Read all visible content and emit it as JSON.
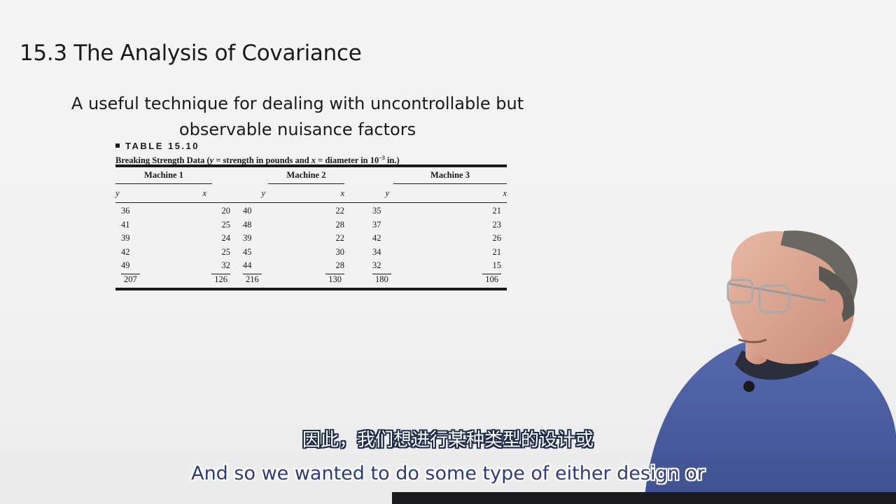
{
  "slide": {
    "title": "15.3 The Analysis of Covariance",
    "subtitle_line1": "A useful technique for dealing with uncontrollable but",
    "subtitle_line2": "observable nuisance factors"
  },
  "table": {
    "label": "TABLE 15.10",
    "caption_prefix": "Breaking Strength Data (",
    "caption_y": "y",
    "caption_mid1": " = strength in pounds and ",
    "caption_x": "x",
    "caption_mid2": " = diameter in 10",
    "caption_exp": "−3",
    "caption_suffix": " in.)",
    "groups": [
      "Machine 1",
      "Machine 2",
      "Machine 3"
    ],
    "vars": [
      "y",
      "x",
      "y",
      "x",
      "y",
      "x"
    ],
    "rows": [
      [
        "36",
        "20",
        "40",
        "22",
        "35",
        "21"
      ],
      [
        "41",
        "25",
        "48",
        "28",
        "37",
        "23"
      ],
      [
        "39",
        "24",
        "39",
        "22",
        "42",
        "26"
      ],
      [
        "42",
        "25",
        "45",
        "30",
        "34",
        "21"
      ],
      [
        "49",
        "32",
        "44",
        "28",
        "32",
        "15"
      ]
    ],
    "totals": [
      "207",
      "126",
      "216",
      "130",
      "180",
      "106"
    ]
  },
  "subtitles": {
    "chinese": "因此，我们想进行某种类型的设计或",
    "english": "And so we wanted to do some type of either design or"
  },
  "colors": {
    "background": "#f2f2f2",
    "sweater": "#4f62a6",
    "subtitle_en": "#2c3a80"
  }
}
